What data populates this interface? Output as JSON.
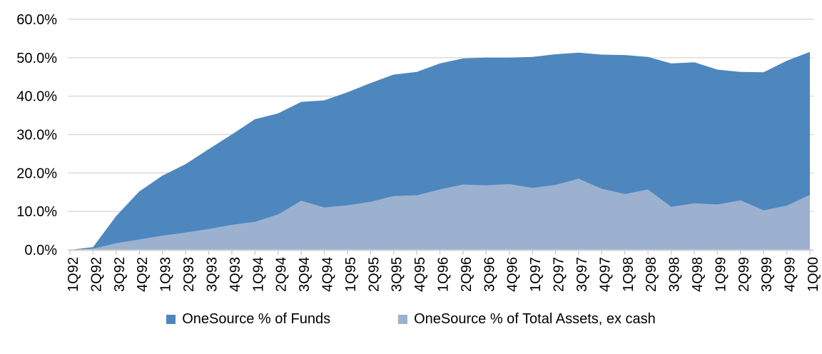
{
  "chart_data": {
    "type": "area",
    "overlap": "overlapped-not-stacked",
    "categories": [
      "1Q92",
      "2Q92",
      "3Q92",
      "4Q92",
      "1Q93",
      "2Q93",
      "3Q93",
      "4Q93",
      "1Q94",
      "2Q94",
      "3Q94",
      "4Q94",
      "1Q95",
      "2Q95",
      "3Q95",
      "4Q95",
      "1Q96",
      "2Q96",
      "3Q96",
      "4Q96",
      "1Q97",
      "2Q97",
      "3Q97",
      "4Q97",
      "1Q98",
      "2Q98",
      "3Q98",
      "4Q98",
      "1Q99",
      "2Q99",
      "3Q99",
      "4Q99",
      "1Q00"
    ],
    "series": [
      {
        "name": "OneSource % of Funds",
        "color": "#4E87BE",
        "values": [
          0.0,
          0.7,
          8.8,
          15.2,
          19.3,
          22.3,
          26.2,
          30.0,
          34.0,
          35.5,
          38.5,
          38.9,
          41.0,
          43.4,
          45.6,
          46.3,
          48.5,
          49.8,
          50.0,
          50.0,
          50.2,
          50.9,
          51.3,
          50.8,
          50.7,
          50.2,
          48.5,
          48.8,
          46.9,
          46.3,
          46.2,
          49.2,
          51.5
        ]
      },
      {
        "name": "OneSource % of Total Assets, ex cash",
        "color": "#9BB1CF",
        "values": [
          0.0,
          0.3,
          1.7,
          2.7,
          3.7,
          4.5,
          5.4,
          6.5,
          7.3,
          9.2,
          12.8,
          11.0,
          11.6,
          12.5,
          14.0,
          14.2,
          15.7,
          17.0,
          16.8,
          17.1,
          16.1,
          16.9,
          18.5,
          15.9,
          14.5,
          15.7,
          11.2,
          12.1,
          11.8,
          12.9,
          10.3,
          11.5,
          14.3
        ]
      }
    ],
    "ylim": [
      0,
      60
    ],
    "y_tick_step": 10,
    "y_tick_labels": [
      "0.0%",
      "10.0%",
      "20.0%",
      "30.0%",
      "40.0%",
      "50.0%",
      "60.0%"
    ],
    "xlabel": "",
    "ylabel": "",
    "title": "",
    "grid": "horizontal",
    "legend_position": "bottom-center",
    "colors": {
      "gridline": "#D9D9D9",
      "axis_line": "#CFCFCF",
      "tick": "#CFCFCF",
      "text": "#000000",
      "background": "#FFFFFF"
    }
  }
}
